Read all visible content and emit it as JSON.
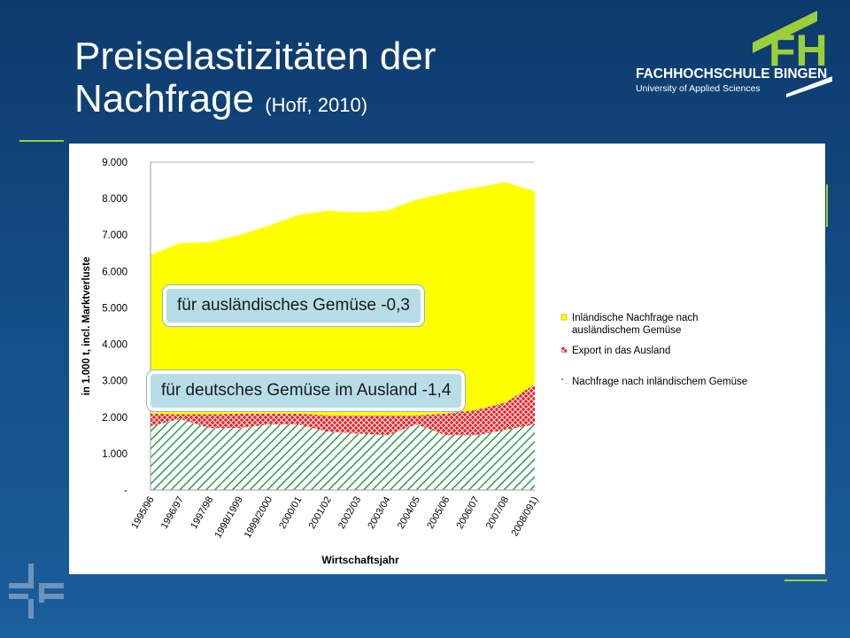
{
  "slide": {
    "title_line1": "Preiselastizitäten der",
    "title_line2": "Nachfrage",
    "title_cite": "(Hoff, 2010)"
  },
  "logo": {
    "mark": "FH",
    "name": "FACHHOCHSCHULE BINGEN",
    "tagline": "University of Applied Sciences"
  },
  "callouts": {
    "foreign": "für ausländisches Gemüse -0,3",
    "german": "für deutsches Gemüse im Ausland -1,4"
  },
  "colors": {
    "accent_green": "#9bcf3a",
    "series_yellow": "#ffff00",
    "series_red": "#e8262b",
    "series_green": "#2e9e4a"
  },
  "chart_data": {
    "type": "area",
    "stacked": true,
    "categories": [
      "1995/96",
      "1996/97",
      "1997/98",
      "1998/1999",
      "1999/2000",
      "2000/01",
      "2001/02",
      "2002/03",
      "2003/04",
      "2004/05",
      "2005/06",
      "2006/07",
      "2007/08",
      "2008/091)"
    ],
    "series": [
      {
        "name": "Nachfrage nach inländischem Gemüse",
        "values": [
          1750,
          1950,
          1700,
          1700,
          1800,
          1800,
          1600,
          1550,
          1500,
          1800,
          1500,
          1500,
          1650,
          1800
        ]
      },
      {
        "name": "Export in das Ausland",
        "values": [
          350,
          130,
          380,
          400,
          300,
          300,
          450,
          500,
          550,
          250,
          600,
          700,
          750,
          1100
        ]
      },
      {
        "name": "Inländische Nachfrage nach ausländischem Gemüse",
        "values": [
          4350,
          4700,
          4720,
          4900,
          5150,
          5450,
          5620,
          5570,
          5620,
          5920,
          6050,
          6100,
          6050,
          5300
        ]
      }
    ],
    "ylabel": "in 1.000 t, incl. Marktverluste",
    "xlabel": "Wirtschaftsjahr",
    "ylim": [
      0,
      9000
    ],
    "yticks": [
      "-",
      "1.000",
      "2.000",
      "3.000",
      "4.000",
      "5.000",
      "6.000",
      "7.000",
      "8.000",
      "9.000"
    ],
    "legend": [
      {
        "label_lines": [
          "Inländische Nachfrage nach",
          "ausländischem Gemüse"
        ]
      },
      {
        "label_lines": [
          "Export in das Ausland"
        ]
      },
      {
        "label_lines": [
          "Nachfrage nach inländischem Gemüse"
        ]
      }
    ],
    "legend_position": "right",
    "grid": "top-line"
  }
}
